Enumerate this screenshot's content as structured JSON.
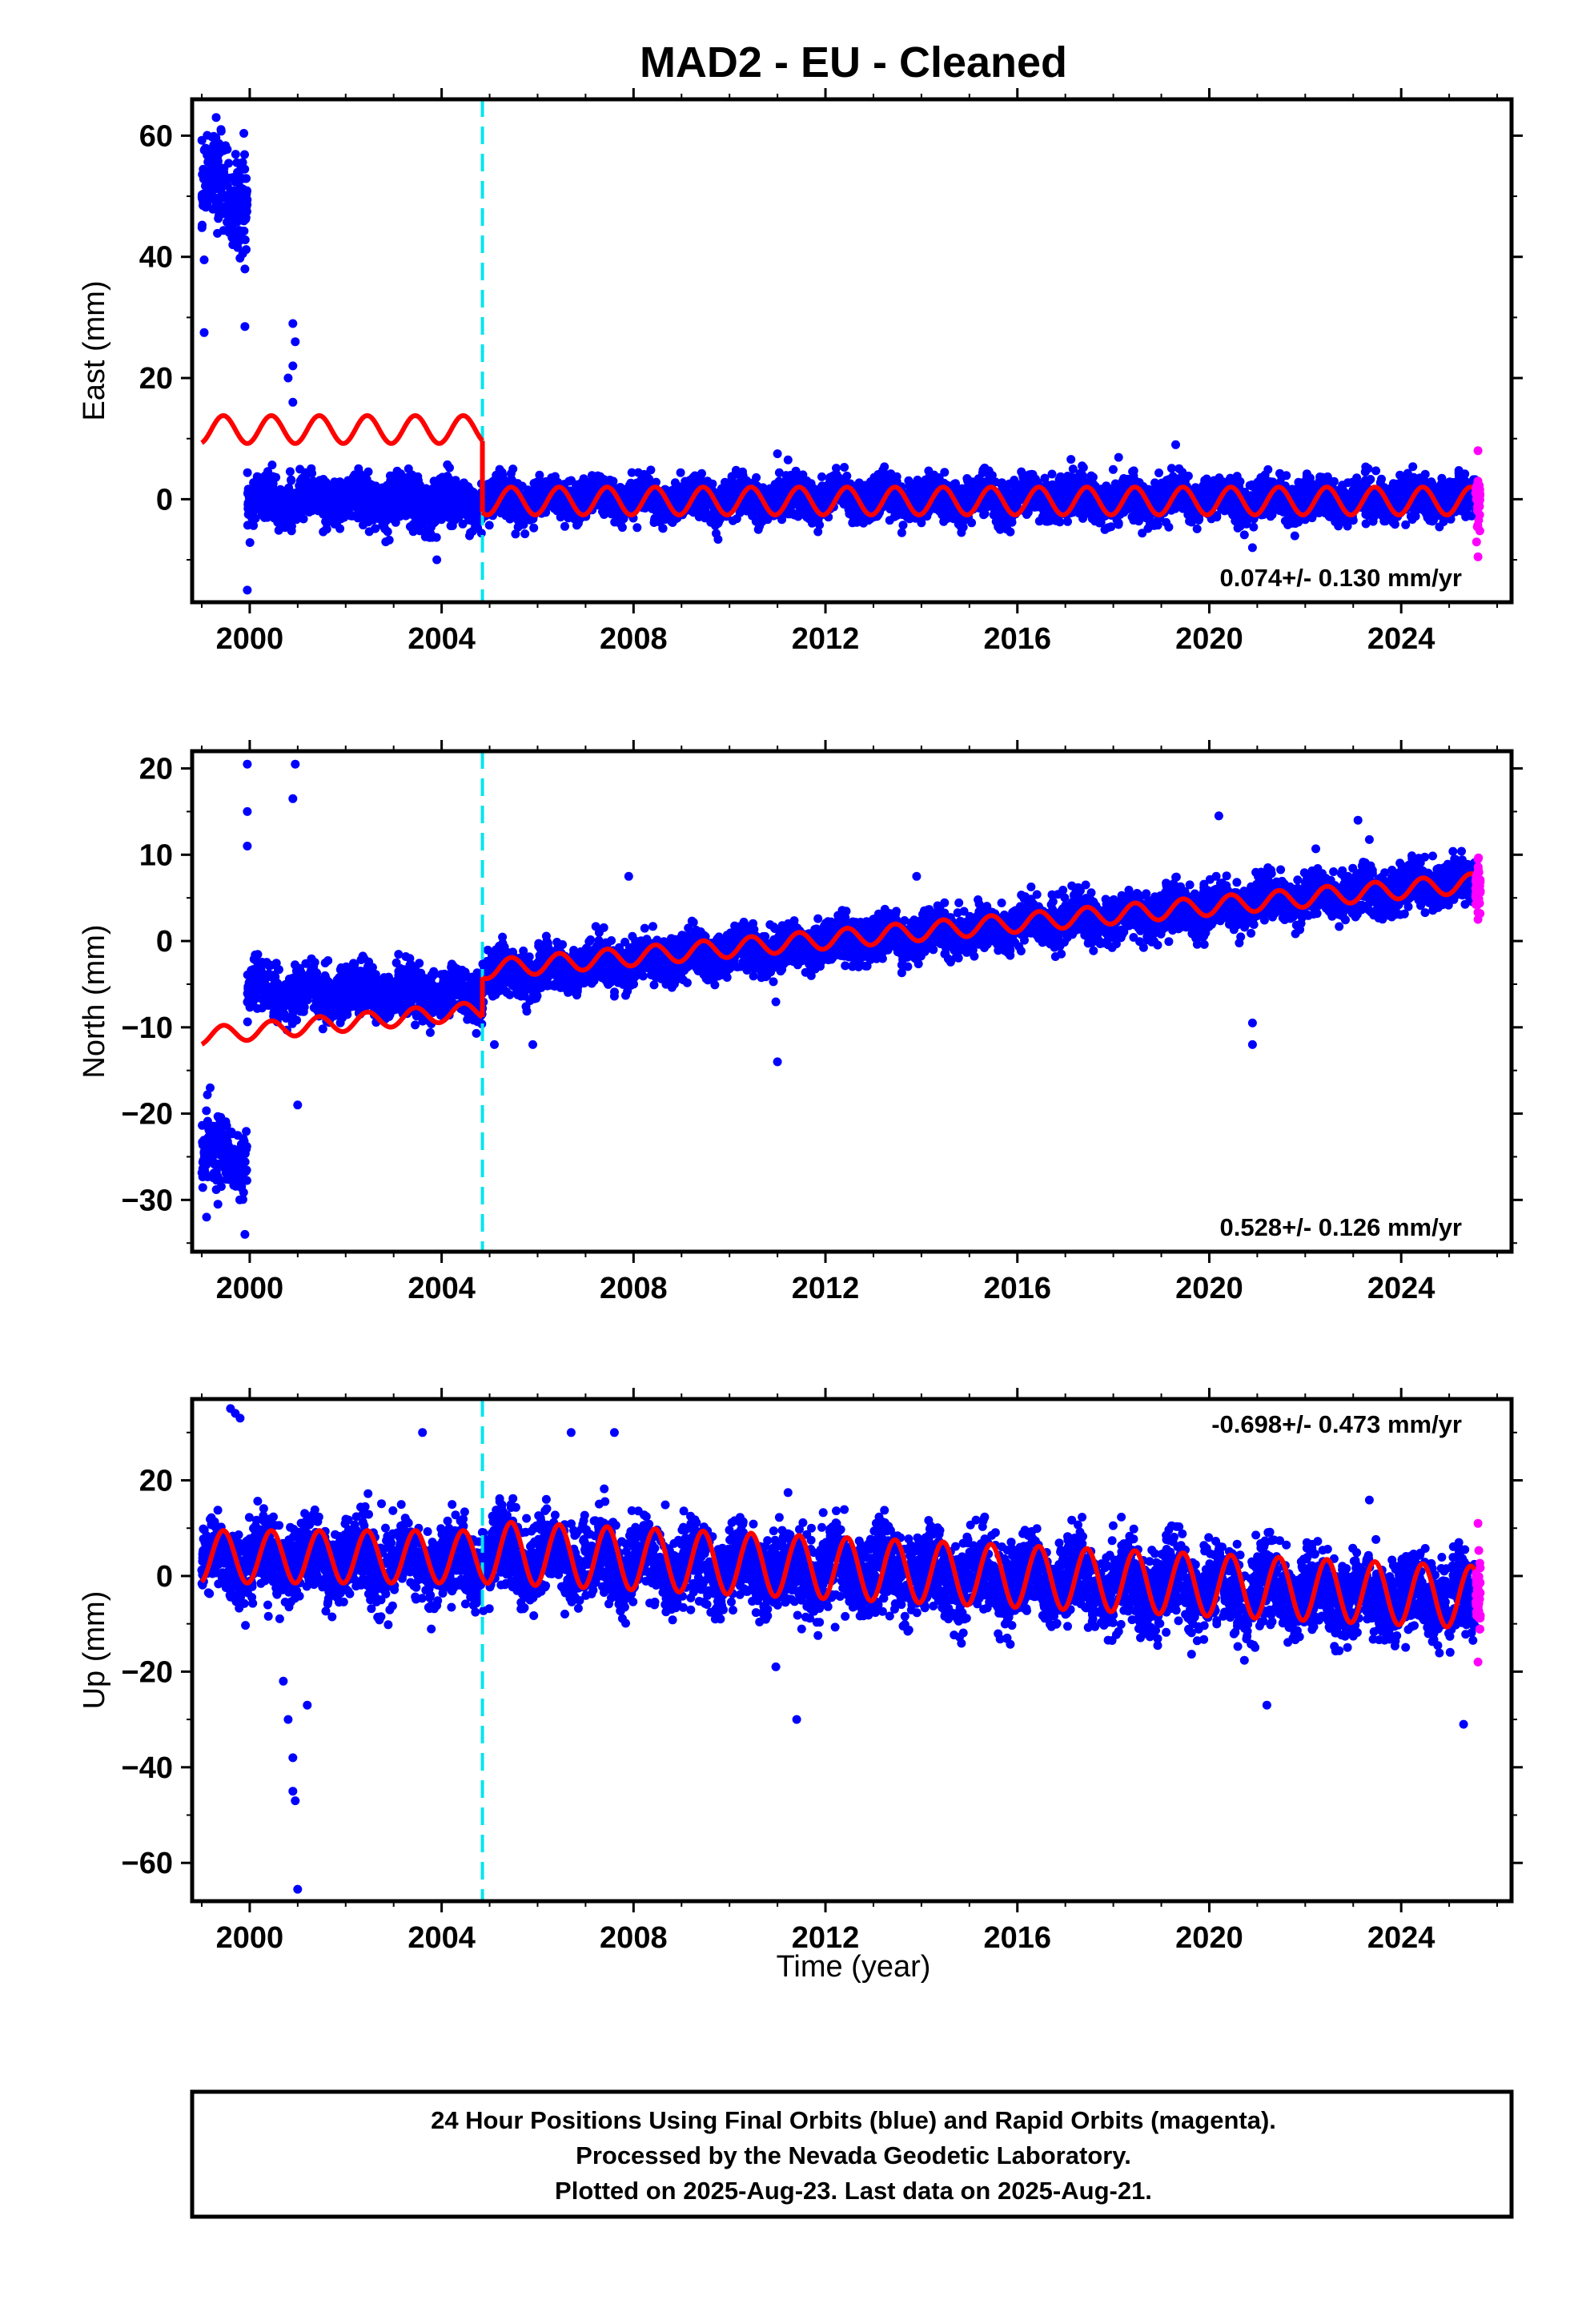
{
  "title": "MAD2  - EU - Cleaned",
  "xlabel": "Time (year)",
  "footer": {
    "line1": "24 Hour Positions Using Final Orbits (blue) and Rapid Orbits (magenta).",
    "line2": "Processed by the Nevada Geodetic Laboratory.",
    "line3": "Plotted on 2025-Aug-23. Last data on 2025-Aug-21."
  },
  "colors": {
    "final": "#0000ff",
    "rapid": "#ff00ff",
    "model": "#ff0000",
    "break": "#00e5ee"
  },
  "chart_data": [
    {
      "type": "scatter",
      "component": "east",
      "ylabel": "East (mm)",
      "xlim": [
        1998.8,
        2026.3
      ],
      "ylim": [
        -17,
        66
      ],
      "xticks": [
        2000,
        2004,
        2008,
        2012,
        2016,
        2020,
        2024
      ],
      "xtick_labels": [
        "2000",
        "2004",
        "2008",
        "2012",
        "2016",
        "2020",
        "2024"
      ],
      "yticks": [
        0,
        20,
        40,
        60
      ],
      "ytick_labels": [
        "0",
        "20",
        "40",
        "60"
      ],
      "rate": "0.074+/- 0.130 mm/yr",
      "break_epochs": [
        2004.85
      ],
      "final_points": {
        "blocks": [
          {
            "x_range": [
              1999.0,
              1999.95
            ],
            "center": 51,
            "spread": 7
          },
          {
            "x_range": [
              1999.95,
              2004.85
            ],
            "center": -0.5,
            "spread": 3.5
          },
          {
            "x_range": [
              2004.85,
              2025.55
            ],
            "center": 0,
            "spread": 3
          }
        ],
        "outliers": [
          [
            1999.3,
            63
          ],
          [
            1999.4,
            61
          ],
          [
            1999.05,
            27.5
          ],
          [
            1999.05,
            39.5
          ],
          [
            1999.9,
            28.5
          ],
          [
            1999.9,
            38
          ],
          [
            2000.9,
            29
          ],
          [
            2000.95,
            26
          ],
          [
            2000.9,
            22
          ],
          [
            2000.8,
            20
          ],
          [
            2000.9,
            16
          ],
          [
            1999.95,
            -15
          ],
          [
            2003.9,
            -10
          ],
          [
            2011.0,
            7.5
          ],
          [
            2019.3,
            9
          ],
          [
            2020.9,
            -8
          ]
        ]
      },
      "rapid_points": {
        "x_range": [
          2025.55,
          2025.65
        ],
        "center": 0,
        "spread": 5,
        "extremes": [
          8,
          -9.5
        ]
      },
      "model_segments": [
        {
          "x_range": [
            1999.0,
            2004.85
          ],
          "offset": 11.5,
          "amplitude": 2.3,
          "trend": 0
        },
        {
          "x_range": [
            2004.85,
            2025.65
          ],
          "offset": -0.3,
          "amplitude": 2.3,
          "trend": 0.074
        }
      ]
    },
    {
      "type": "scatter",
      "component": "north",
      "ylabel": "North (mm)",
      "xlim": [
        1998.8,
        2026.3
      ],
      "ylim": [
        -36,
        22
      ],
      "xticks": [
        2000,
        2004,
        2008,
        2012,
        2016,
        2020,
        2024
      ],
      "xtick_labels": [
        "2000",
        "2004",
        "2008",
        "2012",
        "2016",
        "2020",
        "2024"
      ],
      "yticks": [
        -30,
        -20,
        -10,
        0,
        10,
        20
      ],
      "ytick_labels": [
        "−30",
        "−20",
        "−10",
        "0",
        "10",
        "20"
      ],
      "rate": "0.528+/- 0.126 mm/yr",
      "break_epochs": [
        2004.85
      ],
      "final_points": {
        "blocks": [
          {
            "x_range": [
              1999.0,
              1999.95
            ],
            "center": -25,
            "spread": 3.5
          },
          {
            "x_range": [
              1999.95,
              2004.85
            ],
            "center": -6,
            "spread": 2.5
          },
          {
            "x_range": [
              2004.85,
              2025.55
            ],
            "center_start": -4,
            "center_end": 6.8,
            "spread": 2.3
          }
        ],
        "outliers": [
          [
            1999.95,
            20.5
          ],
          [
            2000.95,
            20.5
          ],
          [
            2000.9,
            16.5
          ],
          [
            1999.95,
            15
          ],
          [
            1999.95,
            11
          ],
          [
            1999.9,
            -34
          ],
          [
            1999.1,
            -32
          ],
          [
            2001.0,
            -19
          ],
          [
            2005.1,
            -12
          ],
          [
            2005.9,
            -12
          ],
          [
            2007.9,
            7.5
          ],
          [
            2013.9,
            7.5
          ],
          [
            2020.2,
            14.5
          ],
          [
            2020.9,
            -9.5
          ],
          [
            2020.9,
            -12
          ],
          [
            2023.1,
            14
          ],
          [
            2011.0,
            -14
          ]
        ]
      },
      "rapid_points": {
        "x_range": [
          2025.55,
          2025.65
        ],
        "center": 6.5,
        "spread": 2.5,
        "extremes": [
          9.5,
          2.5
        ]
      },
      "model_segments": [
        {
          "x_range": [
            1999.0,
            2004.85
          ],
          "offset_start": -11,
          "offset_end": -8,
          "amplitude": 1,
          "trend": 0.5
        },
        {
          "x_range": [
            2004.85,
            2025.65
          ],
          "offset_start": -3.3,
          "offset_end": 6.8,
          "amplitude": 1.1,
          "trend": 0.528
        }
      ]
    },
    {
      "type": "scatter",
      "component": "up",
      "ylabel": "Up (mm)",
      "xlim": [
        1998.8,
        2026.3
      ],
      "ylim": [
        -68,
        37
      ],
      "xticks": [
        2000,
        2004,
        2008,
        2012,
        2016,
        2020,
        2024
      ],
      "xtick_labels": [
        "2000",
        "2004",
        "2008",
        "2012",
        "2016",
        "2020",
        "2024"
      ],
      "yticks": [
        -60,
        -40,
        -20,
        0,
        20
      ],
      "ytick_labels": [
        "−60",
        "−40",
        "−20",
        "0",
        "20"
      ],
      "rate": "-0.698+/- 0.473 mm/yr",
      "break_epochs": [
        2004.85
      ],
      "final_points": {
        "blocks": [
          {
            "x_range": [
              1999.0,
              2004.85
            ],
            "center": 3,
            "spread": 7
          },
          {
            "x_range": [
              2004.85,
              2025.55
            ],
            "center_start": 4,
            "center_end": -5,
            "spread": 7.5
          }
        ],
        "outliers": [
          [
            1999.6,
            35
          ],
          [
            1999.7,
            34
          ],
          [
            1999.8,
            33
          ],
          [
            2000.8,
            -30
          ],
          [
            2000.9,
            -38
          ],
          [
            2000.9,
            -45
          ],
          [
            2000.95,
            -47
          ],
          [
            2001.0,
            -65.5
          ],
          [
            2000.7,
            -22
          ],
          [
            2001.2,
            -27
          ],
          [
            2011.4,
            -30
          ],
          [
            2021.2,
            -27
          ],
          [
            2025.3,
            -31
          ],
          [
            2007.6,
            30
          ],
          [
            2006.7,
            30
          ],
          [
            2003.6,
            30
          ]
        ]
      },
      "rapid_points": {
        "x_range": [
          2025.55,
          2025.65
        ],
        "center": -3,
        "spread": 7,
        "extremes": [
          11,
          -18
        ]
      },
      "model_segments": [
        {
          "x_range": [
            1999.0,
            2004.85
          ],
          "offset": 4,
          "amplitude": 5.5,
          "trend": -0.3
        },
        {
          "x_range": [
            2004.85,
            2025.65
          ],
          "offset_start": 5,
          "offset_end": -4.5,
          "amplitude": 6.5,
          "trend": -0.698
        }
      ]
    }
  ]
}
